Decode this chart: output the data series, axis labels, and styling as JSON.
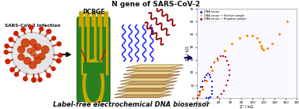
{
  "title_top": "N gene of SARS-CoV-2",
  "title_bottom": "Label-free electrochemical DNA biosensor",
  "label_virus": "SARS-CoV-2 infection",
  "label_pcbge": "PCBGE",
  "legend_labels": [
    "DNA sensor",
    "DNA sensor + Positive sample",
    "DNA sensor + Negative sample"
  ],
  "legend_colors": [
    "#1a1aff",
    "#ff8c00",
    "#cc0000"
  ],
  "xlabel": "Z' / kΩ",
  "ylabel": "Z'' / kΩ",
  "bg_color": "#ffffff",
  "virus_body_color": "#e8e8e8",
  "virus_spike_color": "#cc3300",
  "virus_inner_color": "#cc3300",
  "pcb_green": "#2e8b22",
  "pcb_gold": "#c8a800",
  "blue_x": [
    1,
    3,
    5,
    8,
    11,
    14,
    17,
    20,
    23,
    25,
    27,
    28,
    28,
    27,
    25,
    22,
    18
  ],
  "blue_y": [
    0,
    2,
    5,
    9,
    13,
    16,
    18,
    19,
    18,
    16,
    13,
    9,
    6,
    3,
    1,
    0,
    0
  ],
  "orange_x": [
    2,
    5,
    10,
    18,
    27,
    38,
    50,
    63,
    77,
    90,
    100,
    108,
    113,
    115,
    117,
    120,
    127,
    136,
    148,
    163
  ],
  "orange_y": [
    0,
    3,
    7,
    14,
    22,
    30,
    37,
    43,
    47,
    49,
    49,
    47,
    44,
    41,
    39,
    38,
    39,
    43,
    50,
    60
  ],
  "red_x": [
    1,
    3,
    6,
    10,
    15,
    20,
    26,
    32,
    38,
    43,
    48,
    52,
    55,
    57,
    58,
    58,
    56,
    53,
    49,
    44,
    38
  ],
  "red_y": [
    0,
    2,
    5,
    9,
    14,
    19,
    24,
    28,
    31,
    33,
    33,
    32,
    29,
    26,
    22,
    18,
    14,
    10,
    6,
    3,
    1
  ],
  "xlim": [
    0,
    180
  ],
  "ylim": [
    0,
    70
  ],
  "xticks": [
    0,
    20,
    40,
    60,
    80,
    100,
    120,
    140,
    160,
    180
  ],
  "yticks": [
    0,
    10,
    20,
    30,
    40,
    50,
    60,
    70
  ]
}
